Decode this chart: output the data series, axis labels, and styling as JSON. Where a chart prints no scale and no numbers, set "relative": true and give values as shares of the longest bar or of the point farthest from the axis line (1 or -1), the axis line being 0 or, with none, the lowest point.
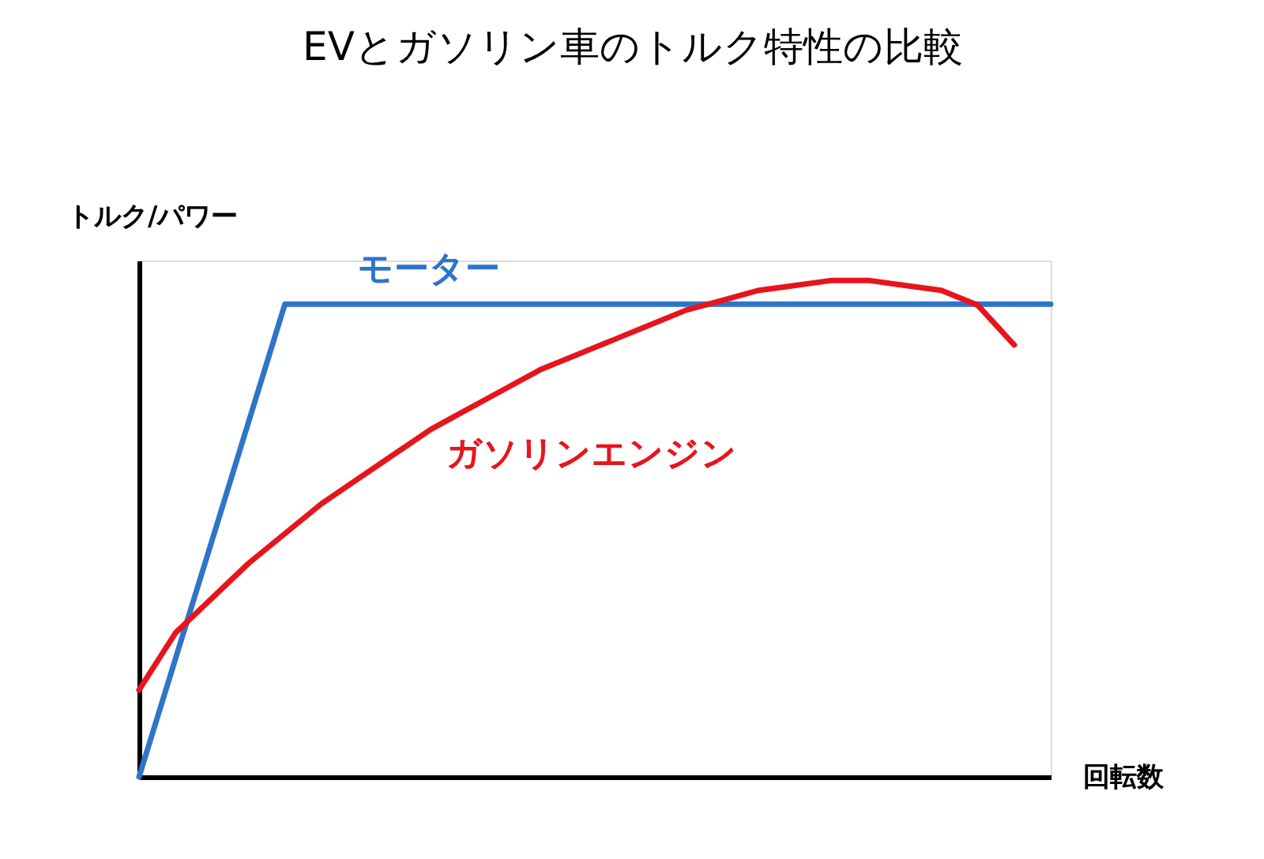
{
  "chart_data": {
    "type": "line",
    "title": "EVとガソリン車のトルク特性の比較",
    "xlabel": "回転数",
    "ylabel": "トルク/パワー",
    "relative": true,
    "grid": false,
    "marker": "none",
    "line_style": "solid",
    "categories": [
      null,
      null,
      null,
      null,
      null,
      null,
      null,
      null,
      null,
      null,
      null,
      null,
      null,
      null,
      null,
      null,
      null,
      null,
      null,
      null,
      null,
      null,
      null,
      null,
      null,
      null
    ],
    "series": [
      {
        "name": "モーター",
        "color": "#2e75c8",
        "values": [
          0,
          0.238,
          0.476,
          0.714,
          0.952,
          0.952,
          0.952,
          0.952,
          0.952,
          0.952,
          0.952,
          0.952,
          0.952,
          0.952,
          0.952,
          0.952,
          0.952,
          0.952,
          0.952,
          0.952,
          0.952,
          0.952,
          0.952,
          0.952,
          0.952,
          0.952
        ]
      },
      {
        "name": "ガソリンエンジン",
        "color": "#e8141c",
        "values": [
          0.175,
          0.29,
          0.36,
          0.43,
          0.49,
          0.55,
          0.6,
          0.65,
          0.7,
          0.74,
          0.78,
          0.82,
          0.85,
          0.88,
          0.91,
          0.94,
          0.96,
          0.98,
          0.99,
          1.0,
          1.0,
          0.99,
          0.98,
          0.95,
          0.87,
          null
        ]
      }
    ]
  }
}
